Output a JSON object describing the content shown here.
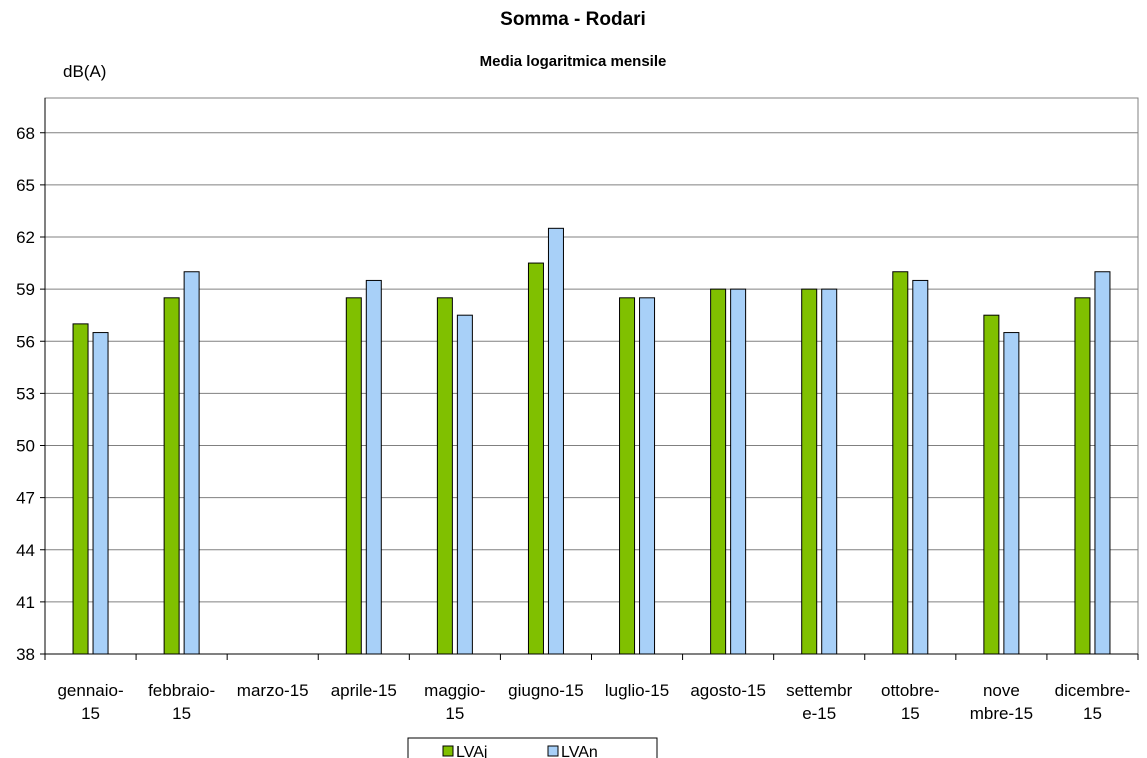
{
  "chart_data": {
    "type": "bar",
    "title": "Somma - Rodari",
    "subtitle": "Media logaritmica mensile",
    "ylabel": "dB(A)",
    "xlabel": "",
    "ylim": [
      38,
      70
    ],
    "yticks": [
      38,
      41,
      44,
      47,
      50,
      53,
      56,
      59,
      62,
      65,
      68
    ],
    "grid": true,
    "legend_position": "bottom",
    "categories": [
      [
        "gennaio-",
        "15"
      ],
      [
        "febbraio-",
        "15"
      ],
      [
        "marzo-15"
      ],
      [
        "aprile-15"
      ],
      [
        "maggio-",
        "15"
      ],
      [
        "giugno-15"
      ],
      [
        "luglio-15"
      ],
      [
        "agosto-15"
      ],
      [
        "settembr",
        "e-15"
      ],
      [
        "ottobre-",
        "15"
      ],
      [
        "nove",
        "mbre-15"
      ],
      [
        "dicembre-",
        "15"
      ]
    ],
    "series": [
      {
        "name": "LVAj",
        "color": "#80C000",
        "values": [
          57,
          58.5,
          null,
          58.5,
          58.5,
          60.5,
          58.5,
          59,
          59,
          60,
          57.5,
          58.5
        ]
      },
      {
        "name": "LVAn",
        "color": "#A8D0F8",
        "values": [
          56.5,
          60,
          null,
          59.5,
          57.5,
          62.5,
          58.5,
          59,
          59,
          59.5,
          56.5,
          60
        ]
      }
    ]
  }
}
